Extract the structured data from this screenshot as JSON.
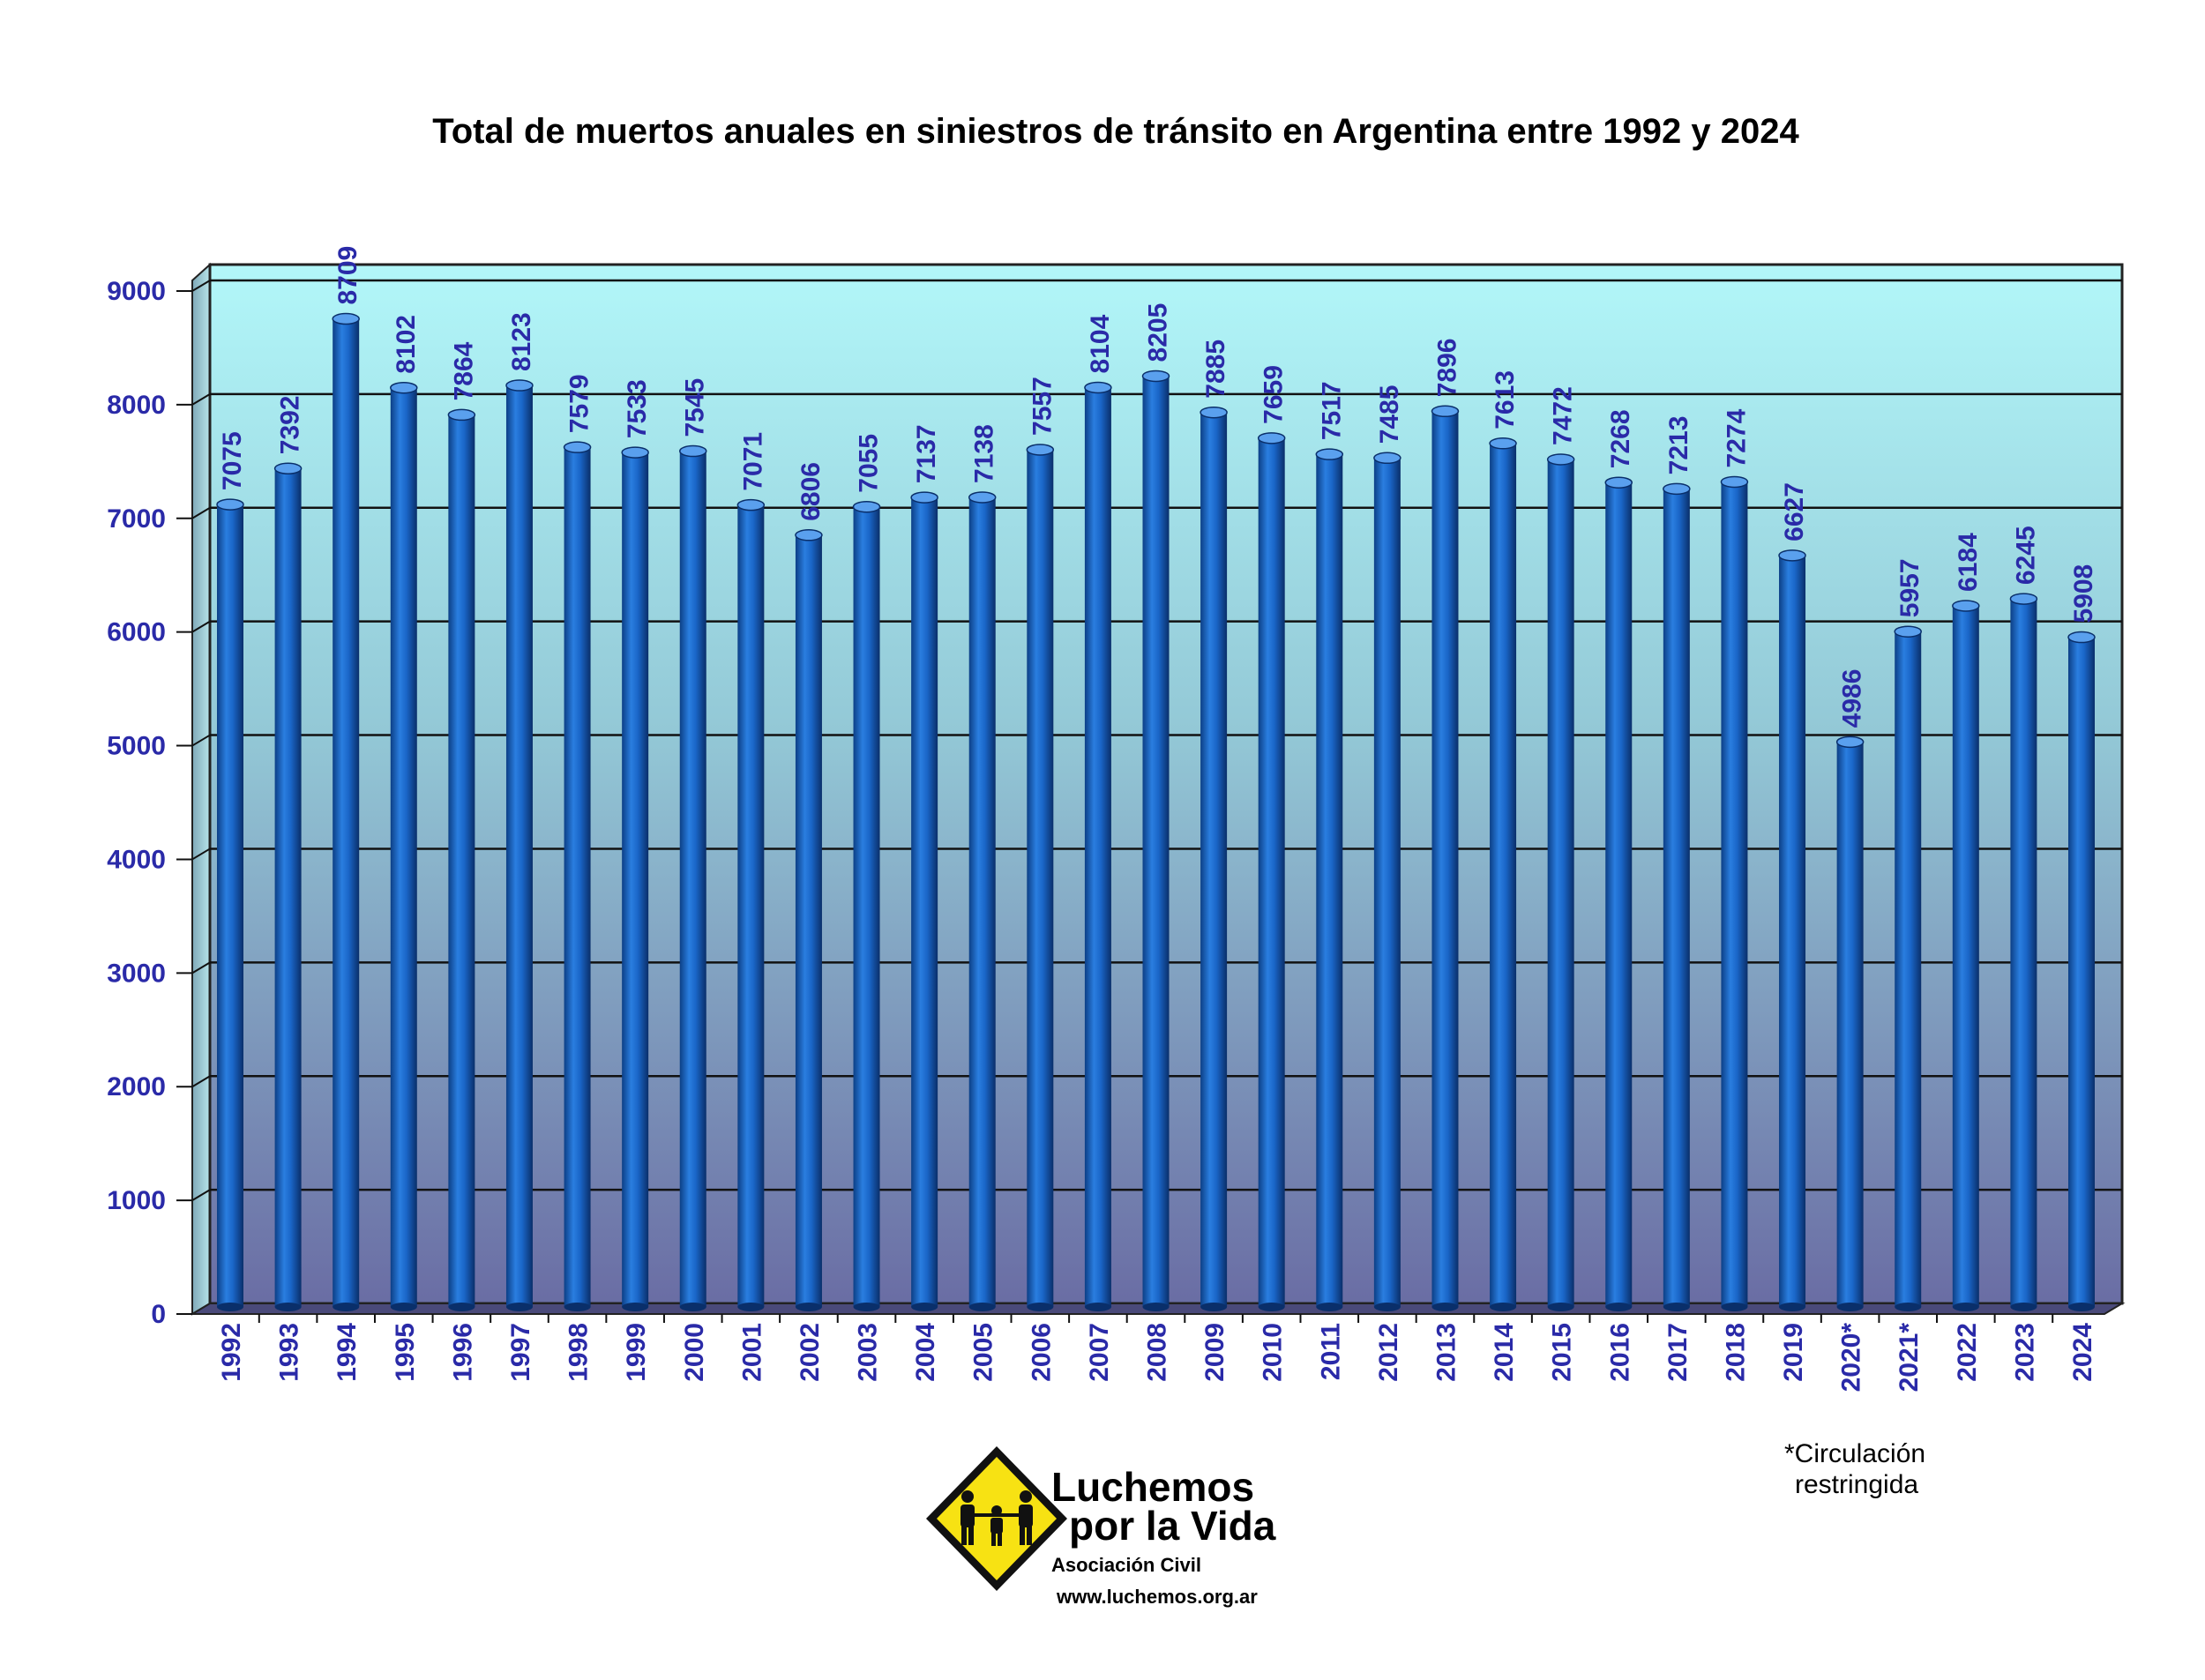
{
  "chart_data": {
    "type": "bar",
    "title": "Total de muertos anuales en siniestros de tránsito en Argentina entre 1992 y 2024",
    "xlabel": "",
    "ylabel": "",
    "ylim": [
      0,
      9000
    ],
    "yticks": [
      "0",
      "1000",
      "2000",
      "3000",
      "4000",
      "5000",
      "6000",
      "7000",
      "8000",
      "9000"
    ],
    "grid": true,
    "categories": [
      "1992",
      "1993",
      "1994",
      "1995",
      "1996",
      "1997",
      "1998",
      "1999",
      "2000",
      "2001",
      "2002",
      "2003",
      "2004",
      "2005",
      "2006",
      "2007",
      "2008",
      "2009",
      "2010",
      "2011",
      "2012",
      "2013",
      "2014",
      "2015",
      "2016",
      "2017",
      "2018",
      "2019",
      "2020*",
      "2021*",
      "2022",
      "2023",
      "2024"
    ],
    "values": [
      7075,
      7392,
      8709,
      8102,
      7864,
      8123,
      7579,
      7533,
      7545,
      7071,
      6806,
      7055,
      7137,
      7138,
      7557,
      8104,
      8205,
      7885,
      7659,
      7517,
      7485,
      7896,
      7613,
      7472,
      7268,
      7213,
      7274,
      6627,
      4986,
      5957,
      6184,
      6245,
      5908
    ],
    "note_line1": "*Circulación",
    "note_line2": "restringida"
  },
  "colors": {
    "bar": "#1a66c8",
    "bar_dark": "#0c3f86",
    "bar_light": "#5aa0ee",
    "label": "#2a2aa8",
    "plot_top": "#aef6f8",
    "plot_bottom": "#6f72a8",
    "logo_sign": "#f7e213"
  },
  "logo": {
    "name_line1": "Luchemos",
    "name_line2": "por la Vida",
    "subtitle": "Asociación Civil",
    "url": "www.luchemos.org.ar",
    "icon": "family-warning-sign-icon"
  }
}
